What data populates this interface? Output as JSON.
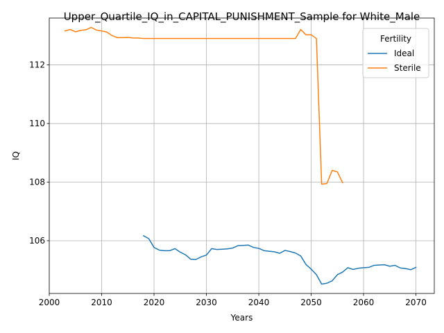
{
  "chart_data": {
    "type": "line",
    "title": "Upper_Quartile_IQ_in_CAPITAL_PUNISHMENT_Sample for White_Male",
    "xlabel": "Years",
    "ylabel": "IQ",
    "xlim": [
      2000,
      2073.5
    ],
    "ylim": [
      104.2,
      113.6
    ],
    "xticks": [
      2000,
      2010,
      2020,
      2030,
      2040,
      2050,
      2060,
      2070
    ],
    "yticks": [
      106,
      108,
      110,
      112
    ],
    "grid": true,
    "legend": {
      "title": "Fertility",
      "position": "top-right"
    },
    "series": [
      {
        "name": "Ideal",
        "color": "#1f77b4",
        "x": [
          2018,
          2019,
          2020,
          2021,
          2022,
          2023,
          2024,
          2025,
          2026,
          2027,
          2028,
          2029,
          2030,
          2031,
          2032,
          2033,
          2034,
          2035,
          2036,
          2037,
          2038,
          2039,
          2040,
          2041,
          2042,
          2043,
          2044,
          2045,
          2046,
          2047,
          2048,
          2049,
          2050,
          2051,
          2052,
          2053,
          2054,
          2055,
          2056,
          2057,
          2058,
          2059,
          2060,
          2061,
          2062,
          2063,
          2064,
          2065,
          2066,
          2067,
          2068,
          2069,
          2070
        ],
        "y": [
          106.17,
          106.07,
          105.77,
          105.68,
          105.66,
          105.66,
          105.73,
          105.61,
          105.52,
          105.37,
          105.36,
          105.45,
          105.51,
          105.73,
          105.7,
          105.71,
          105.72,
          105.75,
          105.83,
          105.84,
          105.85,
          105.77,
          105.74,
          105.66,
          105.64,
          105.62,
          105.57,
          105.67,
          105.63,
          105.58,
          105.48,
          105.19,
          105.03,
          104.84,
          104.52,
          104.55,
          104.63,
          104.84,
          104.93,
          105.08,
          105.02,
          105.06,
          105.08,
          105.09,
          105.16,
          105.17,
          105.18,
          105.13,
          105.16,
          105.07,
          105.05,
          105.01,
          105.09
        ]
      },
      {
        "name": "Sterile",
        "color": "#ff7f0e",
        "x": [
          2003,
          2004,
          2005,
          2006,
          2007,
          2008,
          2009,
          2010,
          2011,
          2012,
          2013,
          2014,
          2015,
          2016,
          2017,
          2018,
          2019,
          2020,
          2021,
          2022,
          2023,
          2024,
          2025,
          2026,
          2027,
          2028,
          2029,
          2030,
          2031,
          2032,
          2033,
          2034,
          2035,
          2036,
          2037,
          2038,
          2039,
          2040,
          2041,
          2042,
          2043,
          2044,
          2045,
          2046,
          2047,
          2048,
          2049,
          2050,
          2051,
          2052,
          2053,
          2054,
          2055,
          2056
        ],
        "y": [
          113.16,
          113.21,
          113.13,
          113.18,
          113.2,
          113.28,
          113.19,
          113.16,
          113.12,
          113.0,
          112.93,
          112.93,
          112.94,
          112.92,
          112.92,
          112.9,
          112.9,
          112.9,
          112.9,
          112.9,
          112.9,
          112.9,
          112.9,
          112.9,
          112.9,
          112.9,
          112.9,
          112.9,
          112.9,
          112.9,
          112.9,
          112.9,
          112.9,
          112.9,
          112.9,
          112.9,
          112.9,
          112.9,
          112.9,
          112.9,
          112.9,
          112.9,
          112.9,
          112.9,
          112.9,
          113.21,
          113.03,
          113.03,
          112.9,
          107.93,
          107.95,
          108.4,
          108.35,
          107.98
        ]
      }
    ]
  }
}
